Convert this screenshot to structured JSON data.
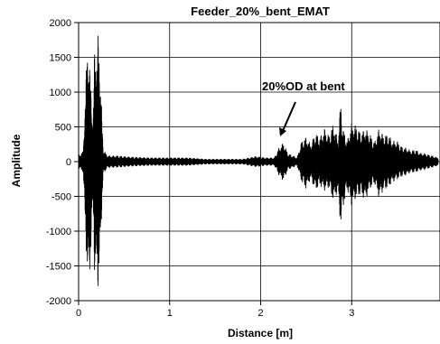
{
  "chart_data": {
    "type": "line",
    "title": "Feeder_20%_bent_EMAT",
    "xlabel": "Distance [m]",
    "ylabel": "Amplitude",
    "xlim": [
      0,
      3.97
    ],
    "ylim": [
      -2000,
      2000
    ],
    "xticks": [
      {
        "value": 0,
        "label": "0"
      },
      {
        "value": 1,
        "label": "1"
      },
      {
        "value": 2,
        "label": "2"
      },
      {
        "value": 3,
        "label": "3"
      }
    ],
    "yticks": [
      {
        "value": 2000,
        "label": "2000"
      },
      {
        "value": 1500,
        "label": "1500"
      },
      {
        "value": 1000,
        "label": "1000"
      },
      {
        "value": 500,
        "label": "500"
      },
      {
        "value": 0,
        "label": "0"
      },
      {
        "value": -500,
        "label": "-500"
      },
      {
        "value": -1000,
        "label": "-1000"
      },
      {
        "value": -1500,
        "label": "-1500"
      },
      {
        "value": -2000,
        "label": "-2000"
      }
    ],
    "grid": true,
    "series": [
      {
        "color": "#000000",
        "envelope_x": [
          0.0,
          0.05,
          0.1,
          0.13,
          0.16,
          0.18,
          0.2,
          0.22,
          0.24,
          0.27,
          0.3,
          0.33,
          0.4,
          0.6,
          0.8,
          1.0,
          1.2,
          1.4,
          1.6,
          1.8,
          1.95,
          2.05,
          2.15,
          2.2,
          2.25,
          2.3,
          2.4,
          2.45,
          2.5,
          2.55,
          2.6,
          2.65,
          2.7,
          2.75,
          2.8,
          2.85,
          2.88,
          2.9,
          2.95,
          3.0,
          3.05,
          3.1,
          3.15,
          3.2,
          3.25,
          3.3,
          3.35,
          3.4,
          3.45,
          3.5,
          3.55,
          3.6,
          3.65,
          3.7,
          3.75,
          3.8,
          3.85,
          3.9,
          3.95
        ],
        "envelope_max": [
          100,
          150,
          1850,
          1200,
          600,
          2000,
          1500,
          2000,
          1200,
          200,
          120,
          90,
          90,
          70,
          60,
          60,
          60,
          40,
          40,
          40,
          80,
          60,
          60,
          200,
          280,
          120,
          60,
          300,
          360,
          250,
          420,
          350,
          480,
          380,
          560,
          300,
          900,
          500,
          300,
          550,
          520,
          420,
          480,
          400,
          280,
          480,
          380,
          400,
          300,
          300,
          220,
          200,
          160,
          180,
          130,
          120,
          100,
          80,
          60
        ],
        "envelope_min": [
          -100,
          -150,
          -1850,
          -1500,
          -600,
          -2000,
          -1500,
          -2000,
          -1200,
          -200,
          -120,
          -90,
          -90,
          -70,
          -60,
          -60,
          -60,
          -40,
          -40,
          -40,
          -80,
          -60,
          -60,
          -200,
          -280,
          -120,
          -60,
          -300,
          -400,
          -250,
          -420,
          -350,
          -420,
          -380,
          -580,
          -420,
          -980,
          -700,
          -400,
          -650,
          -520,
          -480,
          -560,
          -400,
          -320,
          -520,
          -420,
          -380,
          -300,
          -260,
          -220,
          -200,
          -160,
          -160,
          -130,
          -120,
          -100,
          -80,
          -60
        ]
      }
    ],
    "annotations": [
      {
        "text": "20%OD at bent",
        "points_to": {
          "x": 2.2,
          "y": 250
        }
      }
    ]
  }
}
